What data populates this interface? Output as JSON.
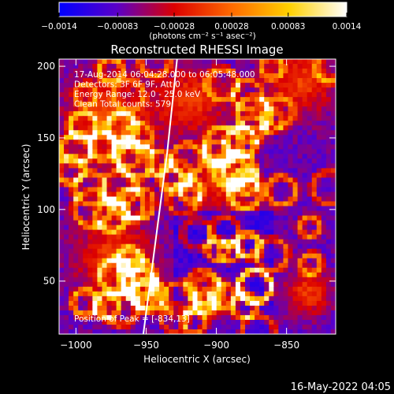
{
  "chart_data": {
    "type": "heatmap",
    "title": "Reconstructed RHESSI Image",
    "xlabel": "Heliocentric X (arcsec)",
    "ylabel": "Heliocentric Y (arcsec)",
    "xlim": [
      -1012,
      -815
    ],
    "ylim": [
      13,
      205
    ],
    "xticks": [
      -1000,
      -950,
      -900,
      -850
    ],
    "yticks": [
      50,
      100,
      150,
      200
    ],
    "xtick_labels": [
      "−1000",
      "−950",
      "−900",
      "−850"
    ],
    "ytick_labels": [
      "50",
      "100",
      "150",
      "200"
    ],
    "colorbar": {
      "range": [
        -0.0014,
        0.0014
      ],
      "ticks": [
        -0.0014,
        -0.00083,
        -0.00028,
        0.00028,
        0.00083,
        0.0014
      ],
      "tick_labels": [
        "−0.0014",
        "−0.00083",
        "−0.00028",
        "0.00028",
        "0.00083",
        "0.0014"
      ],
      "unit_label": "(photons cm⁻² s⁻¹ asec⁻²)",
      "stops": [
        "#0000ff",
        "#5a00c8",
        "#dc0000",
        "#ff6a00",
        "#ffd000",
        "#ffffff"
      ]
    },
    "annotations": [
      "17-Aug-2014 06:04:28.000 to 06:05:48.000",
      "Detectors: 3F 6F 9F, Att 0",
      "Energy Range: 12.0 - 25.0 keV",
      "Clean     Total counts: 579."
    ],
    "peak_label": "Position of Peak = [-834,13]",
    "peak": [
      -834,
      13
    ],
    "limb": [
      [
        -952,
        13
      ],
      [
        -943,
        80
      ],
      [
        -935,
        140
      ],
      [
        -928,
        205
      ]
    ],
    "grid": false
  },
  "footer": {
    "timestamp": "16-May-2022 04:05"
  }
}
